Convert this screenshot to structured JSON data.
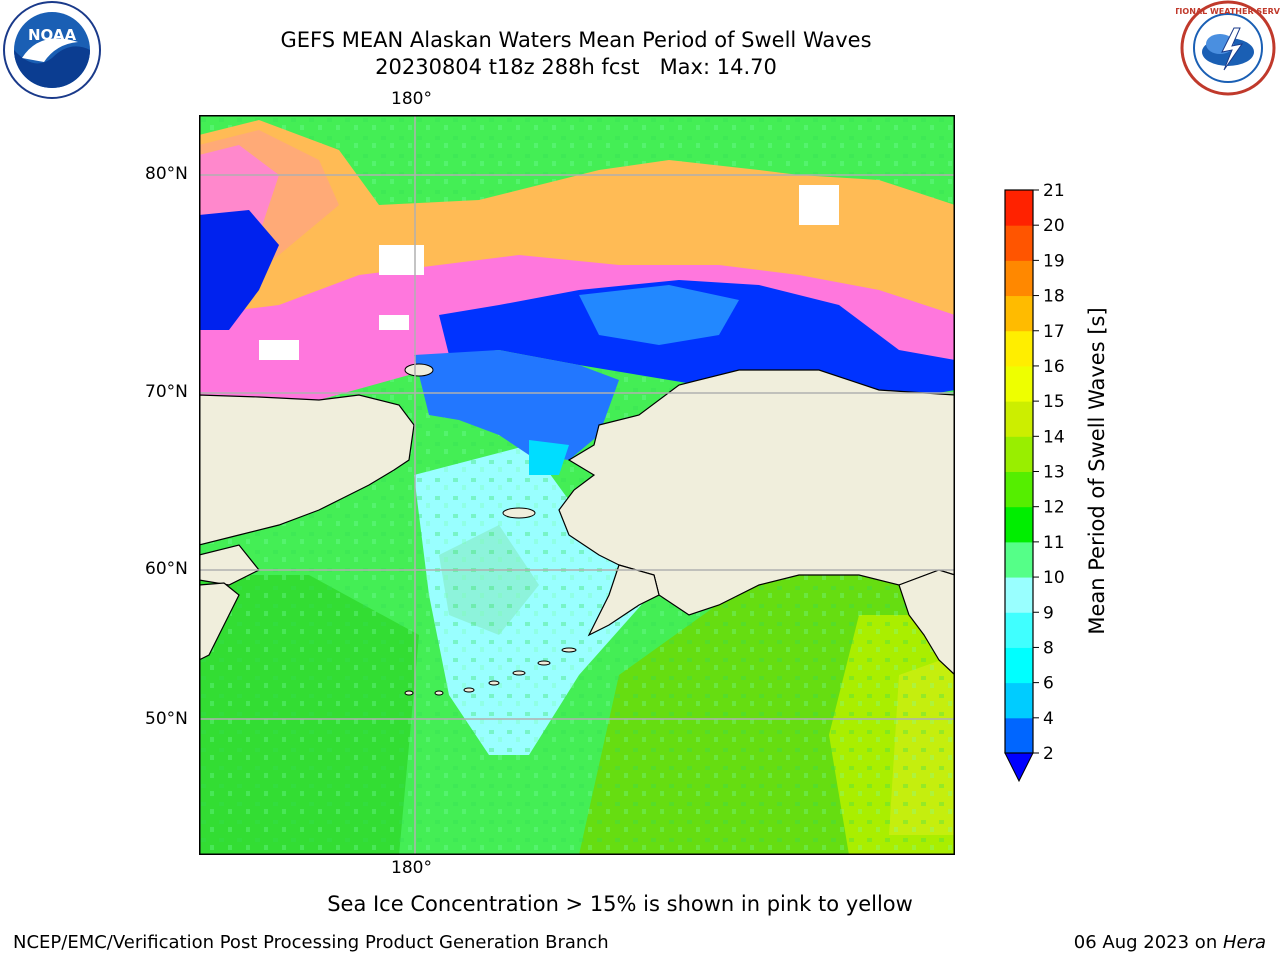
{
  "title": {
    "line1": "GEFS MEAN Alaskan Waters Mean Period of Swell Waves",
    "line2": "20230804 t18z 288h fcst   Max: 14.70"
  },
  "logos": {
    "left": {
      "name": "noaa-logo",
      "text": "NOAA"
    },
    "right": {
      "name": "nws-logo",
      "text": "NATIONAL WEATHER SERVICE"
    }
  },
  "map": {
    "lon_label_top": "180°",
    "lon_label_bottom": "180°",
    "lat_labels": [
      "80°N",
      "70°N",
      "60°N",
      "50°N"
    ]
  },
  "colorbar": {
    "label": "Mean Period of Swell Waves [s]",
    "ticks": [
      "2",
      "4",
      "6",
      "8",
      "9",
      "10",
      "11",
      "12",
      "13",
      "14",
      "15",
      "16",
      "17",
      "18",
      "19",
      "20",
      "21"
    ],
    "colors": [
      "#0066ff",
      "#00ccff",
      "#00ffff",
      "#40ffff",
      "#99ffff",
      "#55ff88",
      "#00ee00",
      "#55ee00",
      "#99ee00",
      "#ccee00",
      "#eeff00",
      "#ffee00",
      "#ffbb00",
      "#ff8800",
      "#ff5500",
      "#ff2200",
      "#ff0000"
    ],
    "under_color": "#0000ff"
  },
  "caption": "Sea Ice Concentration > 15% is shown in pink to yellow",
  "footer": {
    "left": "NCEP/EMC/Verification Post Processing Product Generation Branch",
    "right_date": "06 Aug 2023 on ",
    "right_machine": "Hera"
  }
}
